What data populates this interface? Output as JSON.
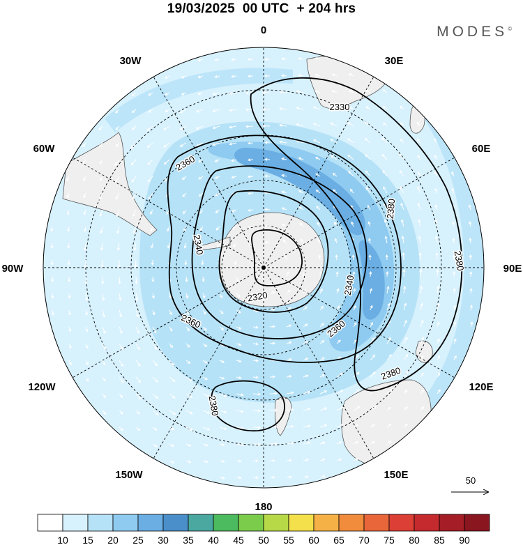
{
  "title": "19/03/2025  00 UTC  + 204 hrs",
  "brand": "MODES",
  "brand_mark": "©",
  "longitude_labels": [
    {
      "text": "0",
      "lon": 0
    },
    {
      "text": "30E",
      "lon": 30
    },
    {
      "text": "60E",
      "lon": 60
    },
    {
      "text": "90E",
      "lon": 90
    },
    {
      "text": "120E",
      "lon": 120
    },
    {
      "text": "150E",
      "lon": 150
    },
    {
      "text": "180",
      "lon": 180
    },
    {
      "text": "150W",
      "lon": -150
    },
    {
      "text": "120W",
      "lon": -120
    },
    {
      "text": "90W",
      "lon": -90
    },
    {
      "text": "60W",
      "lon": -60
    },
    {
      "text": "30W",
      "lon": -30
    }
  ],
  "contour_labels": [
    "2330",
    "2360",
    "2380",
    "2380",
    "2340",
    "2340",
    "2320",
    "2360",
    "2360",
    "2380",
    "2380"
  ],
  "vector_reference": {
    "value": "50"
  },
  "colorbar": {
    "ticks": [
      "10",
      "15",
      "20",
      "25",
      "30",
      "35",
      "40",
      "45",
      "50",
      "55",
      "60",
      "65",
      "70",
      "75",
      "80",
      "85",
      "90"
    ],
    "colors": [
      "#ffffff",
      "#d7f1fd",
      "#b6e2f7",
      "#8fcbf0",
      "#6aaee3",
      "#4a8fc9",
      "#4aa8a0",
      "#4cba5e",
      "#7ccc4c",
      "#b7d947",
      "#f3e04a",
      "#f5b146",
      "#f08c3c",
      "#e8663a",
      "#dc3f35",
      "#c52a2e",
      "#a51d26",
      "#8a1620"
    ]
  },
  "colors": {
    "land": "#efefef",
    "coast": "#555555",
    "contour": "#000000",
    "vector": "#ffffff"
  }
}
